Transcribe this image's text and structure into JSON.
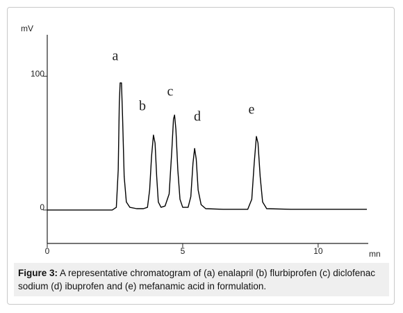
{
  "chart_data": {
    "type": "line",
    "y_label": "mV",
    "x_label": "mn",
    "annotations": [
      "a",
      "b",
      "c",
      "d",
      "e"
    ],
    "x": [
      0,
      2.4,
      2.55,
      2.62,
      2.66,
      2.69,
      2.74,
      2.78,
      2.84,
      2.92,
      3.05,
      3.3,
      3.55,
      3.7,
      3.78,
      3.85,
      3.92,
      3.98,
      4.04,
      4.1,
      4.2,
      4.35,
      4.5,
      4.6,
      4.66,
      4.7,
      4.75,
      4.82,
      4.9,
      5.0,
      5.2,
      5.3,
      5.38,
      5.44,
      5.5,
      5.57,
      5.68,
      5.85,
      6.5,
      7.4,
      7.55,
      7.64,
      7.72,
      7.78,
      7.86,
      7.95,
      8.1,
      9,
      10,
      11.8
    ],
    "values": [
      0,
      0,
      2,
      30,
      80,
      95,
      95,
      70,
      25,
      6,
      2,
      1,
      1,
      2,
      15,
      40,
      56,
      50,
      25,
      6,
      2,
      3,
      12,
      45,
      68,
      71,
      60,
      30,
      8,
      2,
      2,
      10,
      35,
      46,
      38,
      15,
      4,
      1,
      0.5,
      0.5,
      8,
      35,
      55,
      50,
      25,
      6,
      1,
      0.5,
      0.5,
      0.5
    ],
    "color": "#000000",
    "xlim": [
      0,
      11.85
    ],
    "ylim": [
      -25,
      131
    ],
    "xticks": [
      0,
      5,
      10
    ],
    "yticks": [
      0,
      100
    ]
  },
  "caption": {
    "label": "Figure 3:",
    "text": "A representative chromatogram of (a) enalapril (b) flurbiprofen (c) diclofenac sodium (d) ibuprofen and (e) mefanamic acid in formulation."
  }
}
